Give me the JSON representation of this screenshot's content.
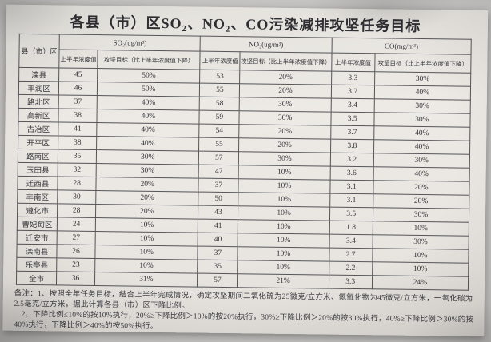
{
  "title": "各县（市）区SO₂、NO₂、CO污染减排攻坚任务目标",
  "table": {
    "region_header": "县（市）区",
    "col_groups": [
      {
        "label": "SO₂(ug/m³)"
      },
      {
        "label": "NO₂(ug/m³)"
      },
      {
        "label": "CO(mg/m³)"
      }
    ],
    "subheaders": {
      "value": "上半年浓度值",
      "target": "攻坚目标（比上半年浓度值下降）"
    },
    "rows": [
      {
        "region": "滦县",
        "so2": "45",
        "so2_target": "50%",
        "no2": "53",
        "no2_target": "20%",
        "co": "3.3",
        "co_target": "30%"
      },
      {
        "region": "丰润区",
        "so2": "46",
        "so2_target": "50%",
        "no2": "55",
        "no2_target": "20%",
        "co": "3.7",
        "co_target": "40%"
      },
      {
        "region": "路北区",
        "so2": "37",
        "so2_target": "40%",
        "no2": "58",
        "no2_target": "30%",
        "co": "3.4",
        "co_target": "30%"
      },
      {
        "region": "高新区",
        "so2": "38",
        "so2_target": "40%",
        "no2": "59",
        "no2_target": "30%",
        "co": "3.5",
        "co_target": "30%"
      },
      {
        "region": "古冶区",
        "so2": "41",
        "so2_target": "40%",
        "no2": "54",
        "no2_target": "20%",
        "co": "3.7",
        "co_target": "40%"
      },
      {
        "region": "开平区",
        "so2": "38",
        "so2_target": "40%",
        "no2": "55",
        "no2_target": "20%",
        "co": "3.8",
        "co_target": "40%"
      },
      {
        "region": "路南区",
        "so2": "35",
        "so2_target": "30%",
        "no2": "57",
        "no2_target": "30%",
        "co": "3.2",
        "co_target": "30%"
      },
      {
        "region": "玉田县",
        "so2": "32",
        "so2_target": "30%",
        "no2": "47",
        "no2_target": "10%",
        "co": "3.6",
        "co_target": "40%"
      },
      {
        "region": "迁西县",
        "so2": "28",
        "so2_target": "20%",
        "no2": "37",
        "no2_target": "10%",
        "co": "3.1",
        "co_target": "20%"
      },
      {
        "region": "丰南区",
        "so2": "30",
        "so2_target": "20%",
        "no2": "50",
        "no2_target": "10%",
        "co": "3.1",
        "co_target": "20%"
      },
      {
        "region": "遵化市",
        "so2": "28",
        "so2_target": "20%",
        "no2": "43",
        "no2_target": "10%",
        "co": "3.5",
        "co_target": "30%"
      },
      {
        "region": "曹妃甸区",
        "so2": "24",
        "so2_target": "10%",
        "no2": "41",
        "no2_target": "10%",
        "co": "1.8",
        "co_target": "10%"
      },
      {
        "region": "迁安市",
        "so2": "27",
        "so2_target": "10%",
        "no2": "40",
        "no2_target": "10%",
        "co": "3.4",
        "co_target": "30%"
      },
      {
        "region": "滦南县",
        "so2": "26",
        "so2_target": "10%",
        "no2": "37",
        "no2_target": "10%",
        "co": "2.7",
        "co_target": "10%"
      },
      {
        "region": "乐亭县",
        "so2": "23",
        "so2_target": "10%",
        "no2": "35",
        "no2_target": "10%",
        "co": "2.2",
        "co_target": "10%"
      },
      {
        "region": "全市",
        "so2": "36",
        "so2_target": "31%",
        "no2": "57",
        "no2_target": "21%",
        "co": "3.3",
        "co_target": "24%"
      }
    ]
  },
  "notes": {
    "line1": "备注：1、按照全年任务目标，结合上半年完成情况，确定攻坚期间二氧化硫为25微克/立方米、氮氧化物为45微克/立方米，一氧化碳为2.5毫克/立方米，据此计算各县（市）区下降比例。",
    "line2": "2、下降比例≤10%的按10%执行，20%≥下降比例＞10%的按20%执行，30%≥下降比例＞20%的按30%执行，40%≥下降比例＞30%的按40%执行，下降比例＞40%的按50%执行。"
  },
  "colors": {
    "ink": "#35353a",
    "table_border": "#55555a",
    "photo_background": "#c6c5c3",
    "paper": "#e9e6e1"
  }
}
